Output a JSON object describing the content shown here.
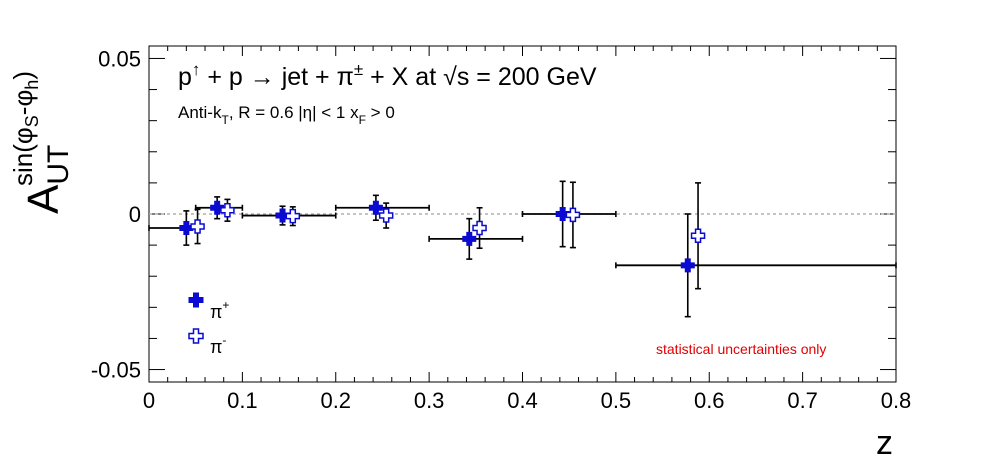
{
  "chart_data": {
    "type": "scatter",
    "title": "",
    "xlabel": "z",
    "ylabel": "A_UT^{sin(φS-φh)}",
    "ylabel_parts": {
      "main": "A",
      "sub": "UT",
      "sup_main": "sin(φ",
      "sup_sub1": "S",
      "sup_mid": "-φ",
      "sup_sub2": "h",
      "sup_end": ")"
    },
    "xlim": [
      0,
      0.8
    ],
    "ylim": [
      -0.054,
      0.054
    ],
    "x_ticks": [
      "0",
      "0.1",
      "0.2",
      "0.3",
      "0.4",
      "0.5",
      "0.6",
      "0.7",
      "0.8"
    ],
    "y_ticks": [
      "-0.05",
      "0",
      "0.05"
    ],
    "annotations": {
      "process": {
        "p1": "p",
        "arrow": "↑",
        "p2": " + p → jet + π",
        "pm": "±",
        "p3": " + X at ",
        "sqrt": "√s",
        "p4": " = 200 GeV"
      },
      "cuts": {
        "c1": "Anti-k",
        "csub": "T",
        "c2": ", R = 0.6   |η| < 1   x",
        "fsub": "F",
        "c3": " > 0"
      },
      "note": "statistical uncertainties only"
    },
    "legend": {
      "placement": "bottom-left",
      "pip_base": "π",
      "pip_sup": "+",
      "pim_base": "π",
      "pim_sup": "-"
    },
    "colors": {
      "pi_plus": "#0a0ad2",
      "pi_minus": "#0a0ad2",
      "note": "#e00000",
      "zero_line": "#a0a0a0"
    },
    "series": [
      {
        "name": "π+",
        "marker": "filled-cross",
        "points": [
          {
            "x": 0.04,
            "y": -0.0045,
            "ey": 0.0055,
            "xlo": 0.0,
            "xhi": 0.05
          },
          {
            "x": 0.073,
            "y": 0.002,
            "ey": 0.0035,
            "xlo": 0.05,
            "xhi": 0.1
          },
          {
            "x": 0.143,
            "y": -0.0005,
            "ey": 0.003,
            "xlo": 0.1,
            "xhi": 0.2
          },
          {
            "x": 0.243,
            "y": 0.002,
            "ey": 0.004,
            "xlo": 0.2,
            "xhi": 0.3
          },
          {
            "x": 0.343,
            "y": -0.008,
            "ey": 0.0065,
            "xlo": 0.3,
            "xhi": 0.4
          },
          {
            "x": 0.443,
            "y": 0.0,
            "ey": 0.0105,
            "xlo": 0.4,
            "xhi": 0.5
          },
          {
            "x": 0.577,
            "y": -0.0165,
            "ey": 0.0165,
            "xlo": 0.5,
            "xhi": 0.8
          }
        ]
      },
      {
        "name": "π-",
        "marker": "open-cross",
        "points": [
          {
            "x": 0.052,
            "y": -0.004,
            "ey": 0.0055
          },
          {
            "x": 0.084,
            "y": 0.0012,
            "ey": 0.0035
          },
          {
            "x": 0.154,
            "y": -0.0007,
            "ey": 0.003
          },
          {
            "x": 0.254,
            "y": -0.0005,
            "ey": 0.004
          },
          {
            "x": 0.354,
            "y": -0.0045,
            "ey": 0.0065
          },
          {
            "x": 0.454,
            "y": -0.0003,
            "ey": 0.0105
          },
          {
            "x": 0.588,
            "y": -0.007,
            "ey": 0.017
          }
        ]
      }
    ]
  }
}
